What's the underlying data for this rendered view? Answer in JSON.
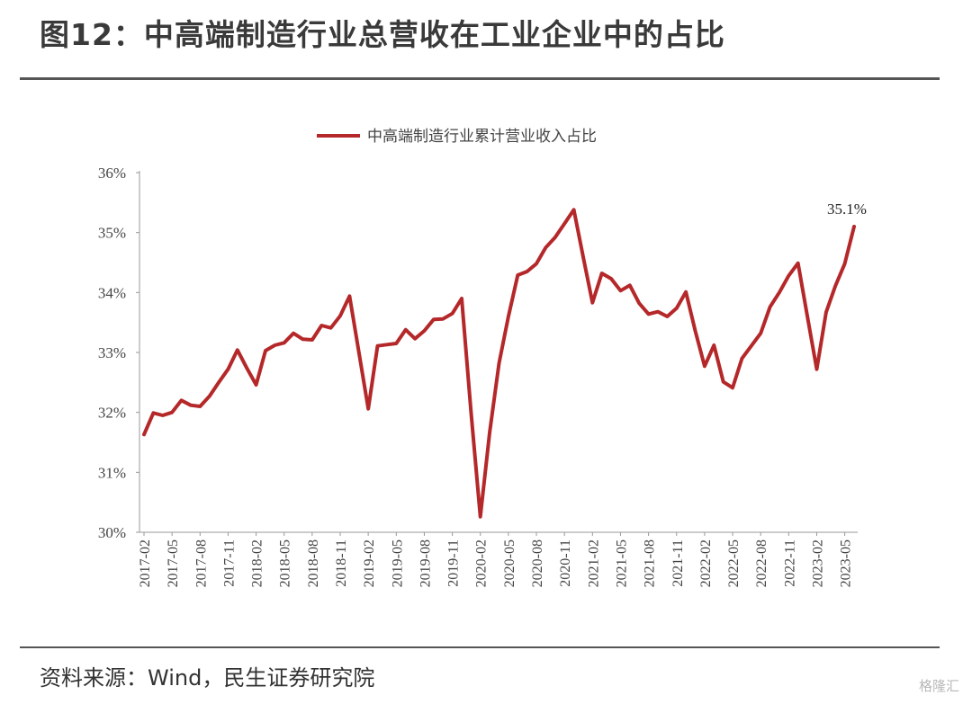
{
  "header": {
    "title": "图12：中高端制造行业总营收在工业企业中的占比"
  },
  "footer": {
    "source": "资料来源：Wind，民生证券研究院",
    "watermark": "格隆汇"
  },
  "colors": {
    "series": "#b5282a",
    "axis": "#999999",
    "text": "#444444",
    "rule": "#555555"
  },
  "chart_data": {
    "type": "line",
    "series": [
      {
        "name": "中高端制造行业累计营业收入占比",
        "color": "#b5282a",
        "values": [
          31.63,
          31.99,
          31.95,
          32.0,
          32.2,
          32.12,
          32.1,
          32.27,
          32.5,
          32.72,
          33.04,
          32.74,
          32.46,
          33.03,
          33.12,
          33.16,
          33.32,
          33.22,
          33.21,
          33.45,
          33.41,
          33.61,
          33.94,
          33.0,
          32.06,
          33.11,
          33.13,
          33.15,
          33.38,
          33.23,
          33.36,
          33.55,
          33.56,
          33.65,
          33.9,
          32.0,
          30.26,
          31.67,
          32.82,
          33.6,
          34.29,
          34.35,
          34.48,
          34.75,
          34.92,
          35.15,
          35.38,
          34.6,
          33.83,
          34.32,
          34.23,
          34.03,
          34.12,
          33.82,
          33.64,
          33.68,
          33.6,
          33.74,
          34.01,
          33.36,
          32.77,
          33.12,
          32.51,
          32.41,
          32.9,
          33.11,
          33.32,
          33.76,
          34.0,
          34.28,
          34.49,
          33.6,
          32.72,
          33.67,
          34.11,
          34.48,
          35.1
        ]
      }
    ],
    "x_tick_labels": [
      "2017-02",
      "2017-05",
      "2017-08",
      "2017-11",
      "2018-02",
      "2018-05",
      "2018-08",
      "2018-11",
      "2019-02",
      "2019-05",
      "2019-08",
      "2019-11",
      "2020-02",
      "2020-05",
      "2020-08",
      "2020-11",
      "2021-02",
      "2021-05",
      "2021-08",
      "2021-11",
      "2022-02",
      "2022-05",
      "2022-08",
      "2022-11",
      "2023-02",
      "2023-05"
    ],
    "y_ticks": [
      "30%",
      "31%",
      "32%",
      "33%",
      "34%",
      "35%",
      "36%"
    ],
    "ylim": [
      30,
      36
    ],
    "annotation": "35.1%",
    "legend_position": "top",
    "grid": false
  }
}
